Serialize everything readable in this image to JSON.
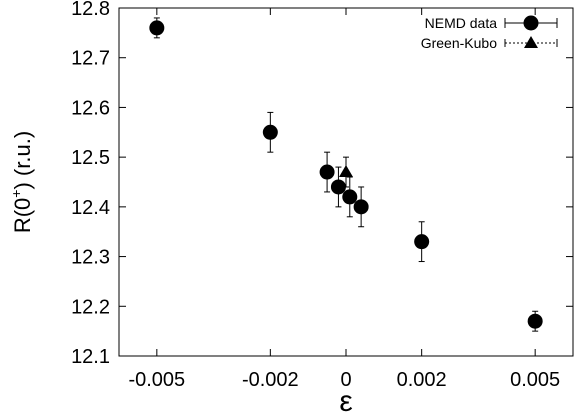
{
  "chart_data": {
    "type": "scatter",
    "xlabel": "ε",
    "ylabel_base": "R(0",
    "ylabel_sup": "+",
    "ylabel_tail": ") (r.u.)",
    "xlim": [
      -0.006,
      0.006
    ],
    "ylim": [
      12.1,
      12.8
    ],
    "x_ticks": [
      {
        "value": -0.005,
        "label": "-0.005"
      },
      {
        "value": -0.002,
        "label": "-0.002"
      },
      {
        "value": 0,
        "label": "0"
      },
      {
        "value": 0.002,
        "label": "0.002"
      },
      {
        "value": 0.005,
        "label": "0.005"
      }
    ],
    "y_ticks": [
      {
        "value": 12.1,
        "label": "12.1"
      },
      {
        "value": 12.2,
        "label": "12.2"
      },
      {
        "value": 12.3,
        "label": "12.3"
      },
      {
        "value": 12.4,
        "label": "12.4"
      },
      {
        "value": 12.5,
        "label": "12.5"
      },
      {
        "value": 12.6,
        "label": "12.6"
      },
      {
        "value": 12.7,
        "label": "12.7"
      },
      {
        "value": 12.8,
        "label": "12.8"
      }
    ],
    "grid": false,
    "legend_position": "top-right",
    "series": [
      {
        "name": "NEMD data",
        "marker": "circle",
        "color": "#000000",
        "points": [
          {
            "x": -0.005,
            "y": 12.76,
            "err": 0.02
          },
          {
            "x": -0.002,
            "y": 12.55,
            "err": 0.04
          },
          {
            "x": -0.0005,
            "y": 12.47,
            "err": 0.04
          },
          {
            "x": -0.0002,
            "y": 12.44,
            "err": 0.04
          },
          {
            "x": 0.0001,
            "y": 12.42,
            "err": 0.04
          },
          {
            "x": 0.0004,
            "y": 12.4,
            "err": 0.04
          },
          {
            "x": 0.002,
            "y": 12.33,
            "err": 0.04
          },
          {
            "x": 0.005,
            "y": 12.17,
            "err": 0.02
          }
        ]
      },
      {
        "name": "Green-Kubo",
        "marker": "triangle",
        "color": "#000000",
        "points": [
          {
            "x": 0.0,
            "y": 12.47,
            "err": 0.03
          }
        ]
      }
    ]
  }
}
